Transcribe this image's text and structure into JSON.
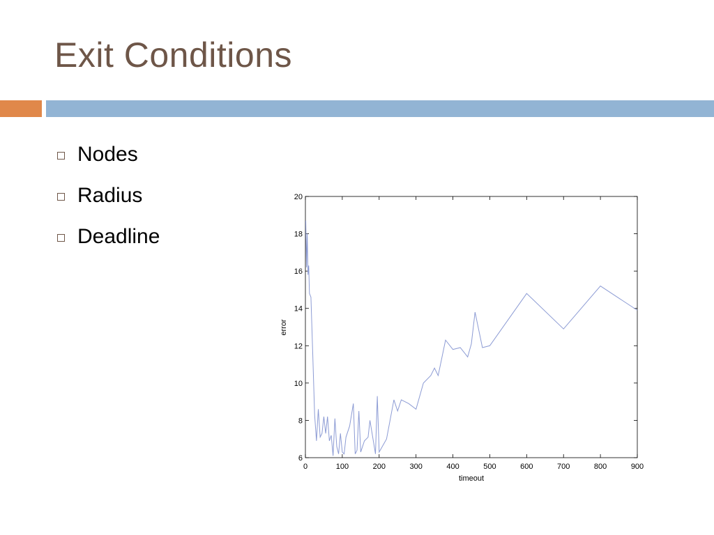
{
  "slide": {
    "title": "Exit Conditions",
    "accent_colors": {
      "title": "#6e5648",
      "bar_left": "#e0884a",
      "bar_right": "#92b4d4"
    },
    "bullets": [
      {
        "label": "Nodes",
        "icon": "square-bullet-icon"
      },
      {
        "label": "Radius",
        "icon": "square-bullet-icon"
      },
      {
        "label": "Deadline",
        "icon": "square-bullet-icon"
      }
    ]
  },
  "chart_data": {
    "type": "line",
    "title": "",
    "xlabel": "timeout",
    "ylabel": "error",
    "xlim": [
      0,
      900
    ],
    "ylim": [
      6,
      20
    ],
    "xticks": [
      "0",
      "100",
      "200",
      "300",
      "400",
      "500",
      "600",
      "700",
      "800",
      "900"
    ],
    "yticks": [
      "6",
      "8",
      "10",
      "12",
      "14",
      "16",
      "18",
      "20"
    ],
    "grid": false,
    "series": [
      {
        "color": "#8c9bd4",
        "x": [
          1,
          3,
          5,
          7,
          9,
          11,
          15,
          20,
          25,
          30,
          35,
          40,
          45,
          50,
          55,
          60,
          65,
          70,
          75,
          80,
          85,
          90,
          95,
          100,
          105,
          110,
          120,
          130,
          135,
          140,
          145,
          150,
          160,
          170,
          175,
          180,
          190,
          195,
          200,
          220,
          240,
          250,
          260,
          280,
          300,
          320,
          340,
          350,
          360,
          380,
          400,
          420,
          440,
          450,
          460,
          480,
          500,
          600,
          700,
          800,
          900
        ],
        "y": [
          18.7,
          16.2,
          18.0,
          15.8,
          16.3,
          14.8,
          14.6,
          11.5,
          8.3,
          6.9,
          8.6,
          7.1,
          7.3,
          8.2,
          7.3,
          8.2,
          6.9,
          7.2,
          6.1,
          8.1,
          6.6,
          6.2,
          7.3,
          6.3,
          6.2,
          7.1,
          7.7,
          8.9,
          6.2,
          6.4,
          8.5,
          6.3,
          6.9,
          7.1,
          8.0,
          7.4,
          6.2,
          9.3,
          6.3,
          7.0,
          9.1,
          8.5,
          9.1,
          8.9,
          8.6,
          10.0,
          10.4,
          10.8,
          10.4,
          12.3,
          11.8,
          11.9,
          11.4,
          12.1,
          13.8,
          11.9,
          12.0,
          14.8,
          12.9,
          15.2,
          13.9
        ]
      }
    ]
  }
}
